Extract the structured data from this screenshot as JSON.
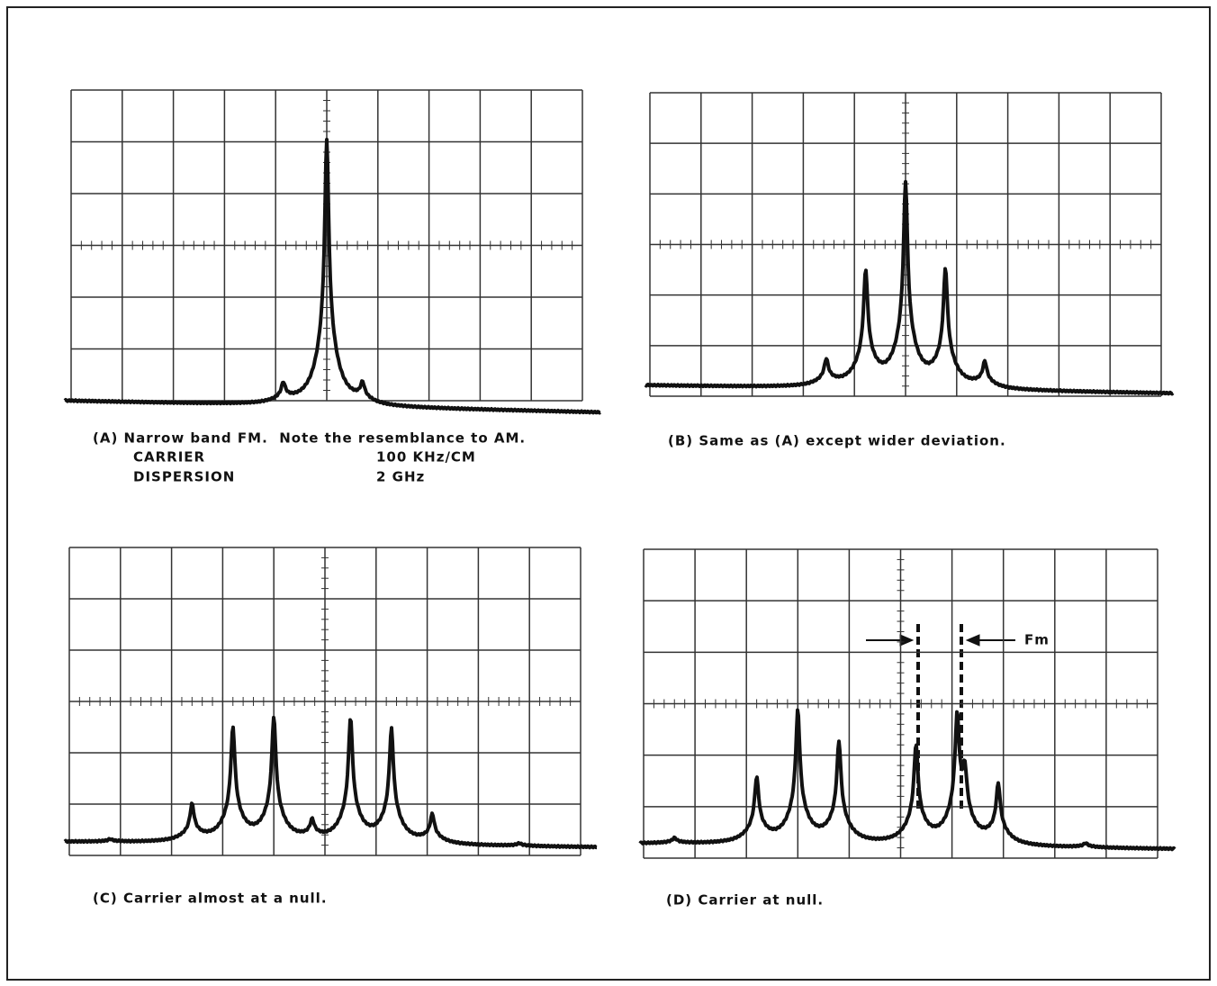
{
  "panels": [
    {
      "caption": "(A) Narrow band FM.  Note the resemblance to AM.",
      "settings": [
        [
          "CARRIER",
          "100 KHz/CM"
        ],
        [
          "DISPERSION",
          "2 GHz"
        ]
      ]
    },
    {
      "caption": "(B) Same as (A) except wider deviation."
    },
    {
      "caption": "(C) Carrier almost at a null."
    },
    {
      "caption": "(D) Carrier at null.",
      "annotation": "Fm"
    }
  ]
}
